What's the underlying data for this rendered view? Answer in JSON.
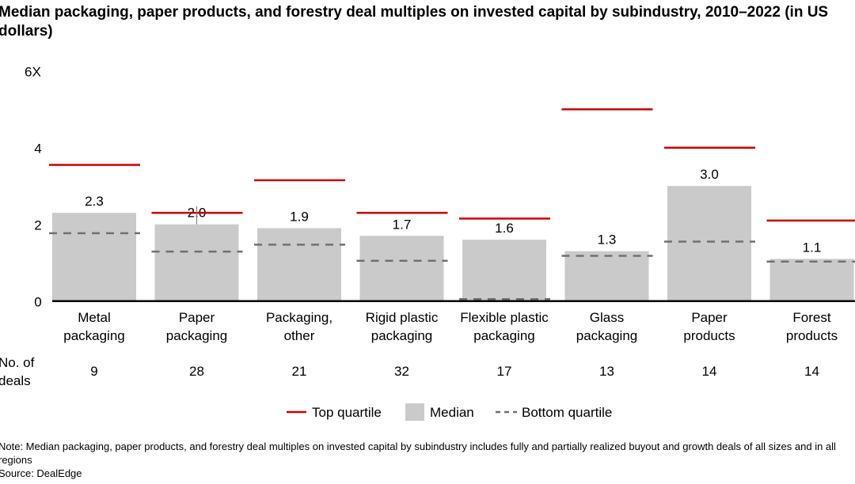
{
  "chart_data": {
    "type": "bar",
    "title": "Median packaging, paper products, and forestry deal multiples on invested capital by subindustry, 2010–2022 (in US dollars)",
    "categories": [
      [
        "Metal",
        "packaging"
      ],
      [
        "Paper",
        "packaging"
      ],
      [
        "Packaging,",
        "other"
      ],
      [
        "Rigid plastic",
        "packaging"
      ],
      [
        "Flexible plastic",
        "packaging"
      ],
      [
        "Glass",
        "packaging"
      ],
      [
        "Paper",
        "products"
      ],
      [
        "Forest",
        "products"
      ]
    ],
    "series": [
      {
        "name": "Median",
        "type": "bar",
        "values": [
          2.3,
          2.0,
          1.9,
          1.7,
          1.6,
          1.3,
          3.0,
          1.1
        ],
        "labels": [
          "2.3",
          "2.0",
          "1.9",
          "1.7",
          "1.6",
          "1.3",
          "3.0",
          "1.1"
        ]
      },
      {
        "name": "Top quartile",
        "type": "line",
        "values": [
          3.55,
          2.3,
          3.15,
          2.3,
          2.15,
          5.0,
          4.0,
          2.1
        ]
      },
      {
        "name": "Bottom quartile",
        "type": "dashed",
        "values": [
          1.77,
          1.29,
          1.47,
          1.05,
          0.05,
          1.18,
          1.55,
          1.03
        ]
      }
    ],
    "deals_label": [
      "No. of",
      "deals"
    ],
    "deals": [
      "9",
      "28",
      "21",
      "32",
      "17",
      "13",
      "14",
      "14"
    ],
    "yticks": [
      {
        "v": 0,
        "label": "0"
      },
      {
        "v": 2,
        "label": "2"
      },
      {
        "v": 4,
        "label": "4"
      },
      {
        "v": 6,
        "label": "6X"
      }
    ],
    "ylim": [
      0,
      6
    ],
    "grid": false,
    "legend_position": "bottom",
    "colors": {
      "median": "#cacaca",
      "top": "#cc0000",
      "bottom": "#707070"
    }
  },
  "note": "Note: Median packaging, paper products, and forestry deal multiples on invested capital by subindustry includes fully and partially realized buyout and growth deals of all sizes and in all regions",
  "source": "Source: DealEdge"
}
